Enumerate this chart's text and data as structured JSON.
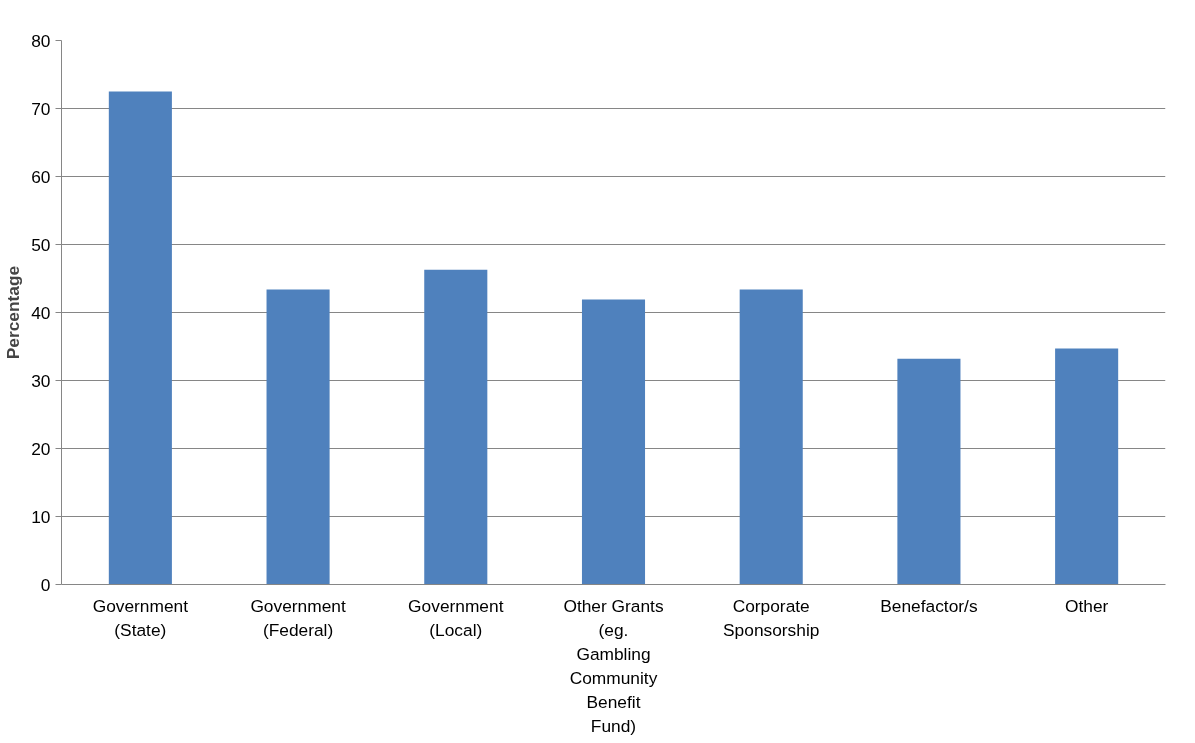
{
  "chart_data": {
    "type": "bar",
    "ylabel": "Percentage",
    "categories": [
      "Government\n(State)",
      "Government\n(Federal)",
      "Government\n(Local)",
      "Other Grants\n(eg.\nGambling\nCommunity\nBenefit\nFund)",
      "Corporate\nSponsorship",
      "Benefactor/s",
      "Other"
    ],
    "values": [
      72.5,
      43.4,
      46.3,
      41.9,
      43.4,
      33.2,
      34.7
    ],
    "color": "#4f81bd",
    "ylim": [
      0,
      80
    ],
    "yticks": [
      0,
      10,
      20,
      30,
      40,
      50,
      60,
      70,
      80
    ],
    "grid": "y"
  }
}
